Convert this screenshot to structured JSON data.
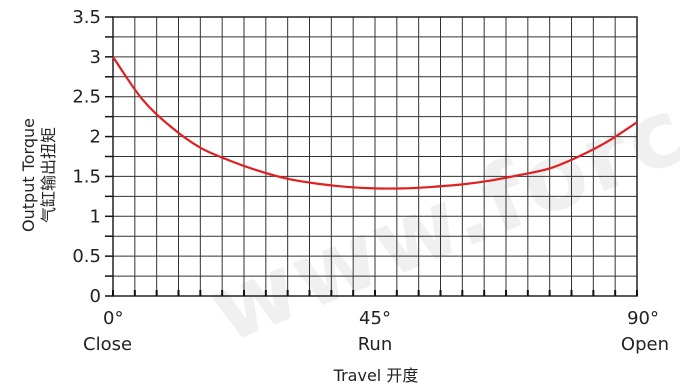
{
  "watermark": "www.forc",
  "chart_data": {
    "type": "line",
    "title": "",
    "xlabel": "Travel 开度",
    "ylabel": [
      "Output Torque",
      "气缸输出扭矩"
    ],
    "xlim": [
      0,
      90
    ],
    "ylim": [
      0,
      3.5
    ],
    "y_ticks": [
      0,
      0.5,
      1,
      1.5,
      2,
      2.5,
      3,
      3.5
    ],
    "x_tick_labels": [
      {
        "x": 0,
        "top": "0°",
        "bottom": "Close"
      },
      {
        "x": 45,
        "top": "45°",
        "bottom": "Run"
      },
      {
        "x": 90,
        "top": "90°",
        "bottom": "Open"
      }
    ],
    "grid": true,
    "series": [
      {
        "color": "#e02020",
        "x": [
          0,
          5,
          10,
          15,
          20,
          25,
          30,
          35,
          40,
          45,
          50,
          55,
          60,
          65,
          70,
          75,
          80,
          85,
          90
        ],
        "y": [
          3.0,
          2.47,
          2.12,
          1.86,
          1.7,
          1.57,
          1.47,
          1.41,
          1.37,
          1.35,
          1.35,
          1.37,
          1.4,
          1.45,
          1.52,
          1.6,
          1.75,
          1.94,
          2.18
        ]
      }
    ]
  }
}
